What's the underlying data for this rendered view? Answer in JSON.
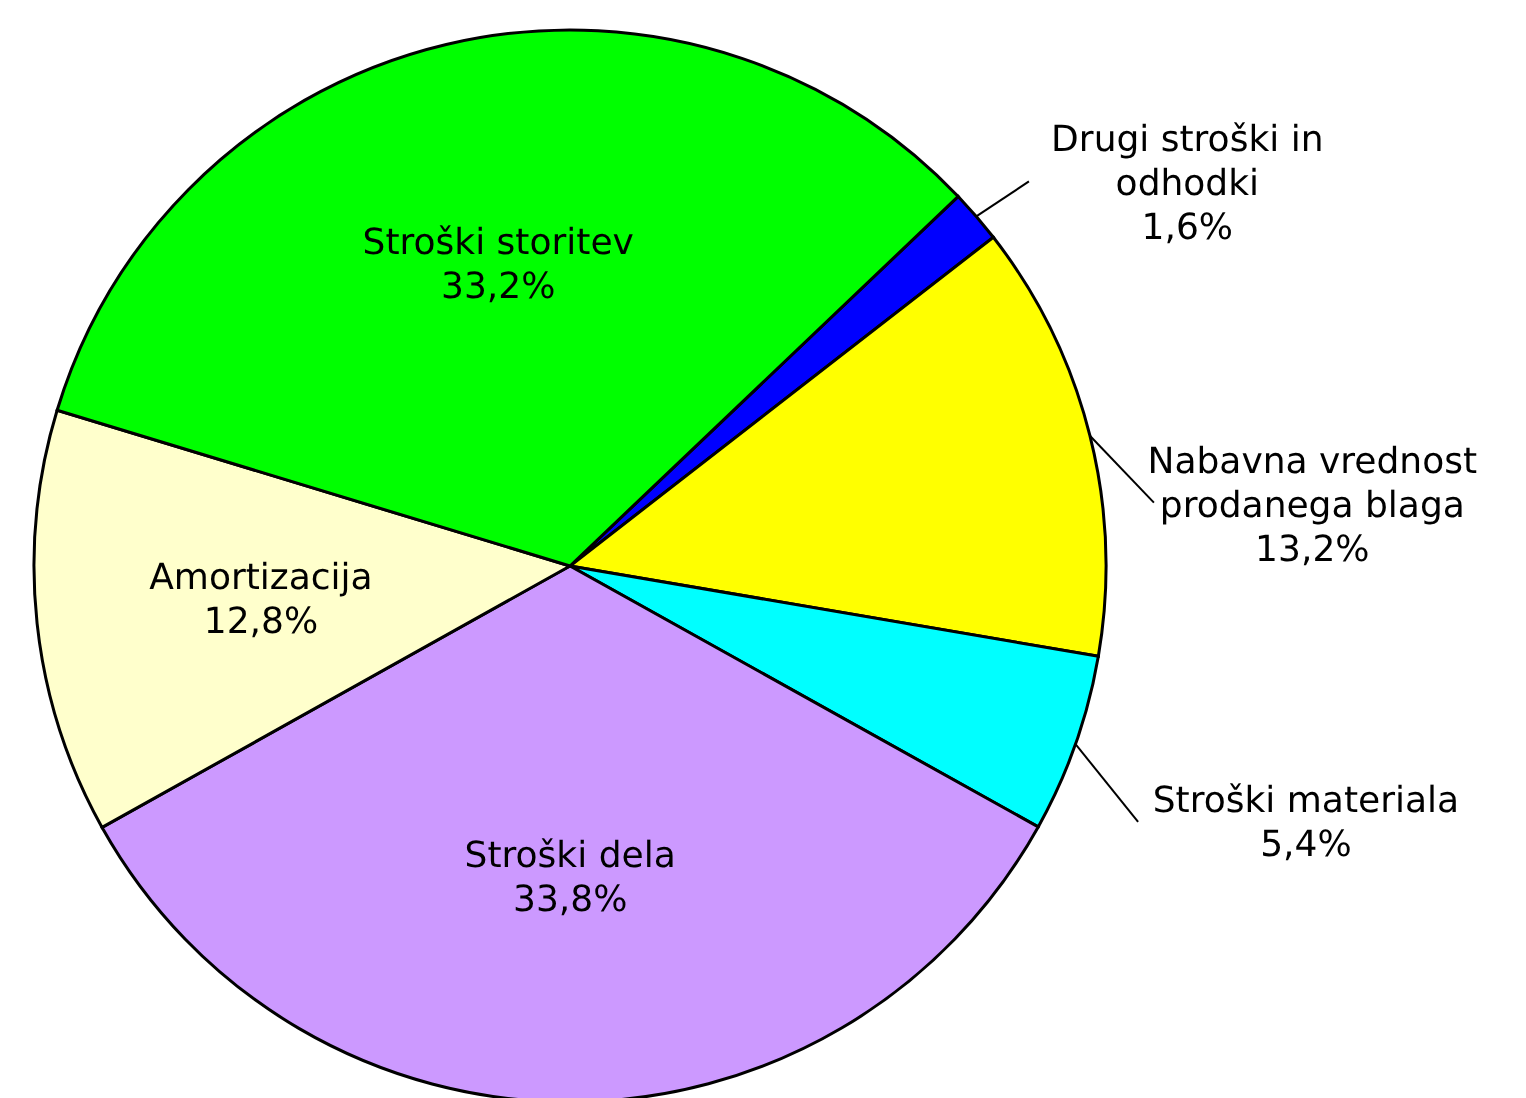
{
  "chart_data": {
    "type": "pie",
    "categories": [
      "Drugi stroški in odhodki",
      "Nabavna vrednost prodanega blaga",
      "Stroški materiala",
      "Stroški dela",
      "Amortizacija",
      "Stroški storitev"
    ],
    "values": [
      1.6,
      13.2,
      5.4,
      33.8,
      12.8,
      33.2
    ],
    "colors": [
      "#0000ff",
      "#ffff00",
      "#00ffff",
      "#cc99ff",
      "#ffffcc",
      "#00ff00"
    ],
    "value_labels": [
      "1,6%",
      "13,2%",
      "5,4%",
      "33,8%",
      "12,8%",
      "33,2%"
    ]
  }
}
